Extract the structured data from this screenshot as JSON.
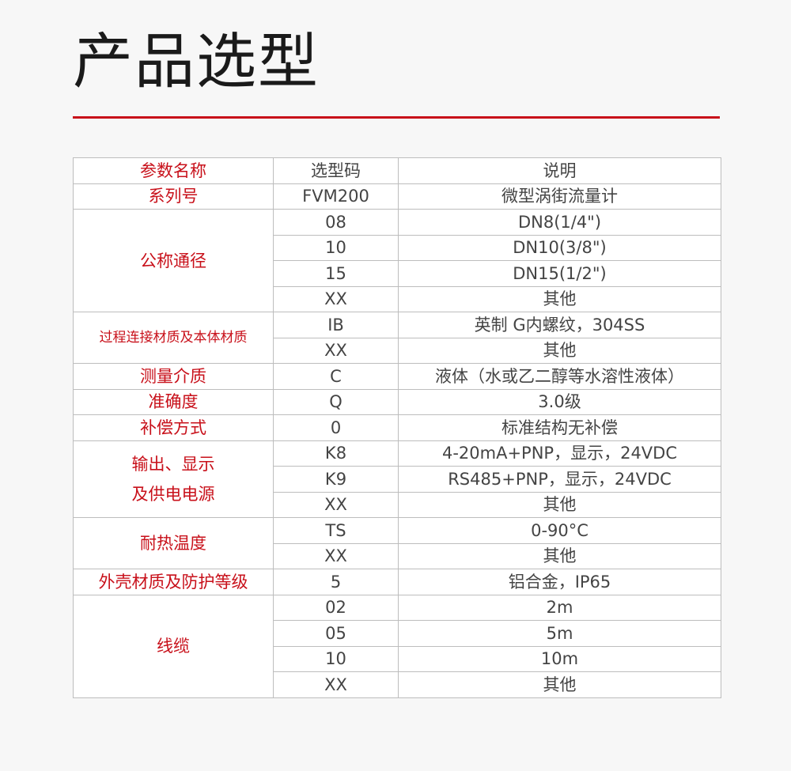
{
  "title": "产品选型",
  "colors": {
    "accent": "#c8101a",
    "text": "#444444",
    "border": "#bdbdbd"
  },
  "header": {
    "param": "参数名称",
    "code": "选型码",
    "desc": "说明"
  },
  "groups": [
    {
      "param": "系列号",
      "rows": [
        {
          "code": "FVM200",
          "desc": "微型涡街流量计"
        }
      ]
    },
    {
      "param": "公称通径",
      "rows": [
        {
          "code": "08",
          "desc": "DN8(1/4\")"
        },
        {
          "code": "10",
          "desc": "DN10(3/8\")"
        },
        {
          "code": "15",
          "desc": "DN15(1/2\")"
        },
        {
          "code": "XX",
          "desc": "其他"
        }
      ]
    },
    {
      "param": "过程连接材质及本体材质",
      "small": true,
      "rows": [
        {
          "code": "IB",
          "desc": "英制 G内螺纹，304SS"
        },
        {
          "code": "XX",
          "desc": "其他"
        }
      ]
    },
    {
      "param": "测量介质",
      "rows": [
        {
          "code": "C",
          "desc": "液体（水或乙二醇等水溶性液体）"
        }
      ]
    },
    {
      "param": "准确度",
      "rows": [
        {
          "code": "Q",
          "desc": "3.0级"
        }
      ]
    },
    {
      "param": "补偿方式",
      "rows": [
        {
          "code": "0",
          "desc": "标准结构无补偿"
        }
      ]
    },
    {
      "param": "输出、显示\n及供电电源",
      "rows": [
        {
          "code": "K8",
          "desc": "4-20mA+PNP，显示，24VDC"
        },
        {
          "code": "K9",
          "desc": "RS485+PNP，显示，24VDC"
        },
        {
          "code": "XX",
          "desc": "其他"
        }
      ]
    },
    {
      "param": "耐热温度",
      "rows": [
        {
          "code": "TS",
          "desc": "0-90°C"
        },
        {
          "code": "XX",
          "desc": "其他"
        }
      ]
    },
    {
      "param": "外壳材质及防护等级",
      "rows": [
        {
          "code": "5",
          "desc": "铝合金，IP65"
        }
      ]
    },
    {
      "param": "线缆",
      "rows": [
        {
          "code": "02",
          "desc": "2m"
        },
        {
          "code": "05",
          "desc": "5m"
        },
        {
          "code": "10",
          "desc": "10m"
        },
        {
          "code": "XX",
          "desc": "其他"
        }
      ]
    }
  ]
}
